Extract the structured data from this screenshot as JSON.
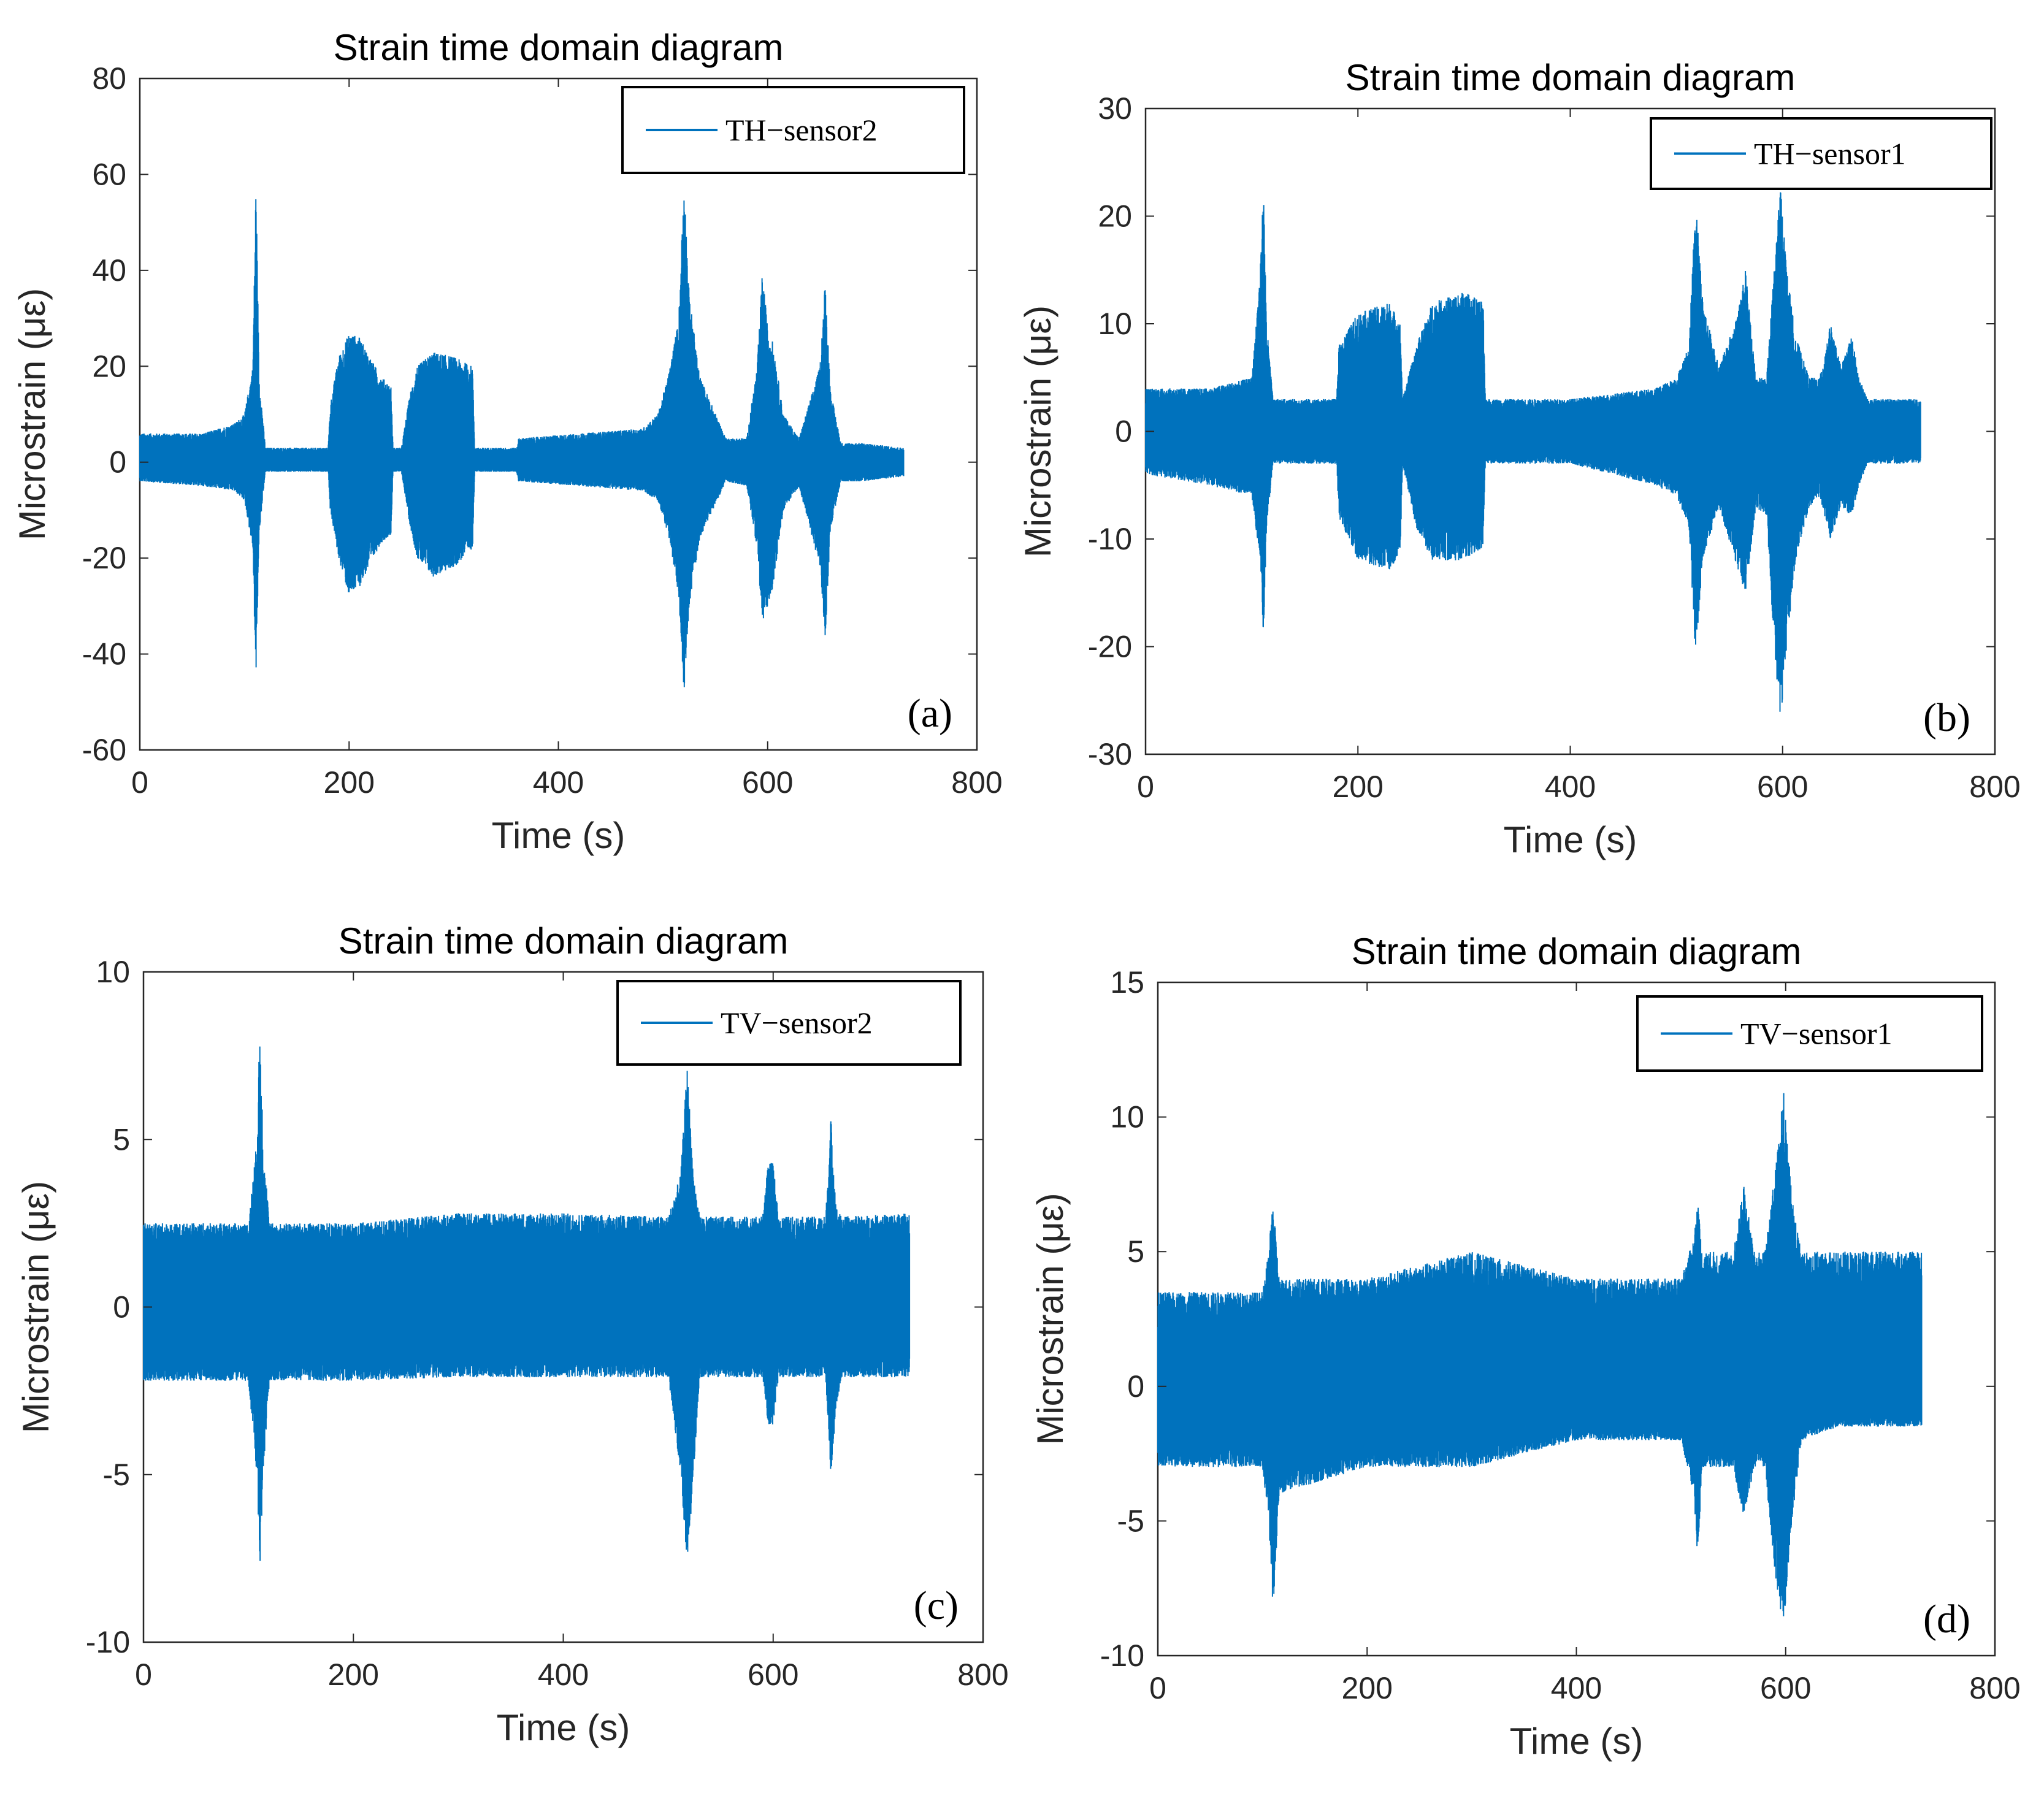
{
  "chart_data": [
    {
      "type": "line",
      "title": "Strain time domain diagram",
      "xlabel": "Time (s)",
      "ylabel": "Microstrain (με)",
      "xlim": [
        0,
        800
      ],
      "ylim": [
        -60,
        80
      ],
      "xticks": [
        0,
        200,
        400,
        600,
        800
      ],
      "yticks": [
        -60,
        -40,
        -20,
        0,
        20,
        40,
        60,
        80
      ],
      "xtick_labels": [
        "0",
        "200",
        "400",
        "600",
        "800"
      ],
      "ytick_labels": [
        "-60",
        "-40",
        "-20",
        "0",
        "20",
        "40",
        "60",
        "80"
      ],
      "grid": false,
      "legend_position": "top-right",
      "panel_label": "(a)",
      "color": "#0072BD",
      "series": [
        {
          "name": "TH−sensor2",
          "envelope": {
            "x": [
              0,
              60,
              90,
              100,
              108,
              111,
              114,
              120,
              140,
              180,
              182,
              190,
              200,
              210,
              230,
              240,
              242,
              250,
              258,
              265,
              280,
              300,
              318,
              320,
              360,
              362,
              480,
              495,
              505,
              515,
              520,
              525,
              535,
              560,
              580,
              590,
              595,
              600,
              605,
              615,
              630,
              650,
              655,
              660,
              670,
              690,
              730
            ],
            "upper": [
              6,
              6,
              8,
              10,
              20,
              59,
              18,
              3,
              3,
              3,
              12,
              22,
              27,
              26,
              18,
              16,
              3,
              3,
              14,
              20,
              23,
              22,
              20,
              3,
              3,
              5,
              7,
              10,
              18,
              30,
              60,
              35,
              18,
              5,
              5,
              20,
              40,
              28,
              25,
              10,
              5,
              20,
              38,
              15,
              4,
              4,
              3
            ],
            "lower": [
              -4,
              -5,
              -6,
              -8,
              -18,
              -46,
              -15,
              -2,
              -2,
              -2,
              -10,
              -20,
              -28,
              -26,
              -17,
              -15,
              -2,
              -2,
              -13,
              -20,
              -24,
              -22,
              -18,
              -2,
              -2,
              -4,
              -6,
              -8,
              -15,
              -28,
              -48,
              -30,
              -16,
              -4,
              -5,
              -18,
              -34,
              -30,
              -26,
              -10,
              -5,
              -22,
              -37,
              -14,
              -4,
              -4,
              -3
            ]
          }
        }
      ]
    },
    {
      "type": "line",
      "title": "Strain time domain diagram",
      "xlabel": "Time (s)",
      "ylabel": "Microstrain (με)",
      "xlim": [
        0,
        800
      ],
      "ylim": [
        -30,
        30
      ],
      "xticks": [
        0,
        200,
        400,
        600,
        800
      ],
      "yticks": [
        -30,
        -20,
        -10,
        0,
        10,
        20,
        30
      ],
      "xtick_labels": [
        "0",
        "200",
        "400",
        "600",
        "800"
      ],
      "ytick_labels": [
        "-30",
        "-20",
        "-10",
        "0",
        "10",
        "20",
        "30"
      ],
      "grid": false,
      "legend_position": "top-right",
      "panel_label": "(b)",
      "color": "#0072BD",
      "series": [
        {
          "name": "TH−sensor1",
          "envelope": {
            "x": [
              0,
              60,
              100,
              108,
              111,
              114,
              120,
              180,
              182,
              200,
              230,
              240,
              242,
              255,
              270,
              300,
              318,
              320,
              400,
              480,
              500,
              512,
              518,
              525,
              540,
              555,
              565,
              575,
              585,
              592,
              598,
              604,
              612,
              625,
              635,
              645,
              655,
              665,
              672,
              680,
              730
            ],
            "upper": [
              4,
              4,
              5,
              15,
              23,
              10,
              3,
              3,
              8,
              11,
              12,
              10,
              3,
              8,
              12,
              13,
              12,
              3,
              3,
              4,
              5,
              8,
              22,
              12,
              6,
              10,
              15,
              5,
              5,
              15,
              23,
              15,
              9,
              5,
              5,
              10,
              6,
              9,
              5,
              3,
              3
            ],
            "lower": [
              -4,
              -5,
              -6,
              -12,
              -19,
              -9,
              -3,
              -3,
              -8,
              -12,
              -13,
              -11,
              -3,
              -9,
              -12,
              -12,
              -11,
              -3,
              -3,
              -5,
              -6,
              -9,
              -21,
              -12,
              -7,
              -12,
              -15,
              -7,
              -8,
              -20,
              -27,
              -20,
              -12,
              -7,
              -6,
              -10,
              -7,
              -8,
              -5,
              -3,
              -3
            ]
          }
        }
      ]
    },
    {
      "type": "line",
      "title": "Strain time domain diagram",
      "xlabel": "Time (s)",
      "ylabel": "Microstrain (με)",
      "xlim": [
        0,
        800
      ],
      "ylim": [
        -10,
        10
      ],
      "xticks": [
        0,
        200,
        400,
        600,
        800
      ],
      "yticks": [
        -10,
        -5,
        0,
        5,
        10
      ],
      "xtick_labels": [
        "0",
        "200",
        "400",
        "600",
        "800"
      ],
      "ytick_labels": [
        "-10",
        "-5",
        "0",
        "5",
        "10"
      ],
      "grid": false,
      "legend_position": "top-right",
      "panel_label": "(c)",
      "color": "#0072BD",
      "series": [
        {
          "name": "TV−sensor2",
          "envelope": {
            "x": [
              0,
              100,
              108,
              111,
              114,
              120,
              200,
              300,
              400,
              500,
              512,
              518,
              524,
              530,
              590,
              595,
              600,
              605,
              650,
              655,
              660,
              665,
              730
            ],
            "upper": [
              2.5,
              2.5,
              5,
              8.5,
              5,
              2.5,
              2.5,
              2.8,
              2.8,
              2.7,
              4,
              7.2,
              4,
              2.7,
              2.7,
              4.3,
              4.3,
              2.7,
              2.7,
              5.7,
              3,
              2.7,
              2.8
            ],
            "lower": [
              -2.2,
              -2.2,
              -5,
              -7.8,
              -5,
              -2.2,
              -2.2,
              -2.1,
              -2.1,
              -2.1,
              -5,
              -8,
              -5,
              -2.1,
              -2.1,
              -3.5,
              -3.5,
              -2.1,
              -2.1,
              -5,
              -3,
              -2.1,
              -2.1
            ]
          }
        }
      ]
    },
    {
      "type": "line",
      "title": "Strain time domain diagram",
      "xlabel": "Time (s)",
      "ylabel": "Microstrain (με)",
      "xlim": [
        0,
        800
      ],
      "ylim": [
        -10,
        15
      ],
      "xticks": [
        0,
        200,
        400,
        600,
        800
      ],
      "yticks": [
        -10,
        -5,
        0,
        5,
        10,
        15
      ],
      "xtick_labels": [
        "0",
        "200",
        "400",
        "600",
        "800"
      ],
      "ytick_labels": [
        "-10",
        "-5",
        "0",
        "5",
        "10",
        "15"
      ],
      "grid": false,
      "legend_position": "top-right",
      "panel_label": "(d)",
      "color": "#0072BD",
      "series": [
        {
          "name": "TV−sensor1",
          "envelope": {
            "x": [
              0,
              100,
              106,
              110,
              116,
              200,
              300,
              400,
              500,
              512,
              516,
              520,
              550,
              560,
              570,
              580,
              590,
              598,
              606,
              615,
              650,
              730
            ],
            "upper": [
              3.5,
              3.5,
              5,
              7,
              4,
              4,
              5,
              4,
              4,
              5.5,
              7,
              5,
              5,
              7.5,
              5,
              5,
              8,
              11,
              7,
              5,
              5,
              5
            ],
            "lower": [
              -3,
              -3,
              -5,
              -8.5,
              -4,
              -3,
              -3,
              -2,
              -2,
              -4,
              -6.5,
              -3,
              -3,
              -5,
              -3,
              -3,
              -7,
              -9,
              -5,
              -2,
              -1.5,
              -1.5
            ]
          }
        }
      ]
    }
  ]
}
